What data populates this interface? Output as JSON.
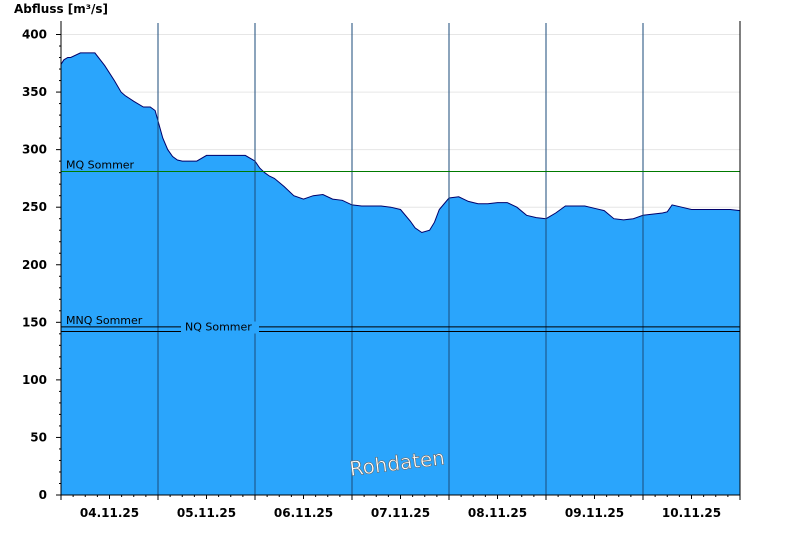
{
  "chart_data": {
    "type": "area",
    "ylabel": "Abfluss [m³/s]",
    "xlabel": "",
    "ylim": [
      0,
      410
    ],
    "xlim": [
      0,
      7
    ],
    "yticks": [
      0,
      50,
      100,
      150,
      200,
      250,
      300,
      350,
      400
    ],
    "x_tick_labels": [
      "04.11.25",
      "05.11.25",
      "06.11.25",
      "07.11.25",
      "08.11.25",
      "09.11.25",
      "10.11.25"
    ],
    "grid": true,
    "area_color": "#2aa5fc",
    "line_color": "#00006a",
    "watermark": "Rohdaten",
    "reference_lines": [
      {
        "label": "MQ Sommer",
        "value": 281,
        "color": "#007a00"
      },
      {
        "label": "MNQ Sommer",
        "value": 146,
        "color": "#000000"
      },
      {
        "label": "NQ Sommer",
        "value": 142,
        "color": "#000000"
      }
    ],
    "series": [
      {
        "x": [
          0,
          0.03,
          0.07,
          0.1,
          0.2,
          0.35,
          0.45,
          0.55,
          0.62,
          0.66,
          0.75,
          0.85,
          0.92,
          0.97,
          1.0,
          1.05,
          1.1,
          1.15,
          1.2,
          1.25,
          1.3,
          1.4,
          1.5,
          1.6,
          1.7,
          1.8,
          1.9,
          2.0,
          2.05,
          2.1,
          2.15,
          2.2,
          2.3,
          2.4,
          2.5,
          2.6,
          2.7,
          2.8,
          2.9,
          3.0,
          3.1,
          3.2,
          3.3,
          3.4,
          3.5,
          3.6,
          3.65,
          3.72,
          3.8,
          3.85,
          3.9,
          4.0,
          4.1,
          4.2,
          4.3,
          4.4,
          4.5,
          4.6,
          4.7,
          4.8,
          4.9,
          5.0,
          5.1,
          5.2,
          5.3,
          5.4,
          5.5,
          5.6,
          5.7,
          5.8,
          5.9,
          6.0,
          6.1,
          6.2,
          6.25,
          6.3,
          6.4,
          6.5,
          6.6,
          6.7,
          6.8,
          6.9,
          7.0
        ],
        "y": [
          374,
          378,
          380,
          380,
          384,
          384,
          373,
          360,
          350,
          347,
          342,
          337,
          337,
          334,
          325,
          310,
          300,
          294,
          291,
          290,
          290,
          290,
          295,
          295,
          295,
          295,
          295,
          290,
          284,
          280,
          277,
          275,
          268,
          260,
          257,
          260,
          261,
          257,
          256,
          252,
          251,
          251,
          251,
          250,
          248,
          238,
          232,
          228,
          230,
          237,
          248,
          258,
          259,
          255,
          253,
          253,
          254,
          254,
          250,
          243,
          241,
          240,
          245,
          251,
          251,
          251,
          249,
          247,
          240,
          239,
          240,
          243,
          244,
          245,
          246,
          252,
          250,
          248,
          248,
          248,
          248,
          248,
          247
        ]
      }
    ]
  }
}
